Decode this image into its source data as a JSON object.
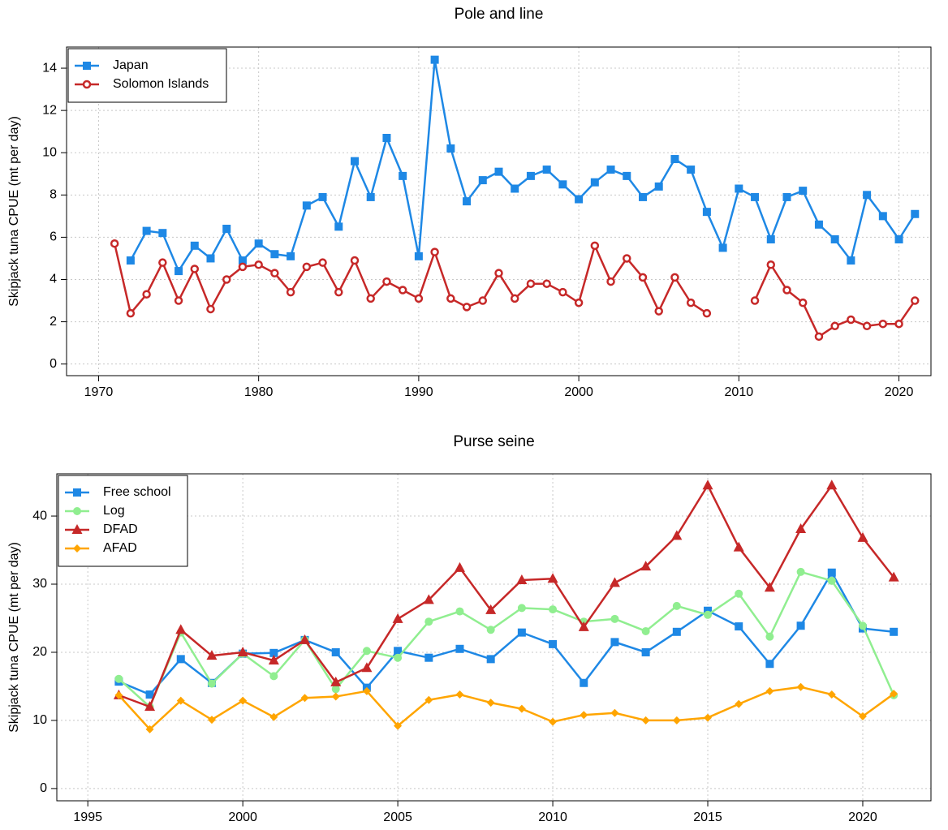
{
  "chart_data": [
    {
      "type": "line",
      "title": "Pole and line",
      "y_label": "Skipjack tuna CPUE (mt per day)",
      "xlim": [
        1968,
        2022
      ],
      "xticks": [
        1970,
        1980,
        1990,
        2000,
        2010,
        2020
      ],
      "ylim": [
        -0.55,
        15.0
      ],
      "yticks": [
        0,
        2,
        4,
        6,
        8,
        10,
        12,
        14
      ],
      "grid": true,
      "legend": "top-left",
      "series": [
        {
          "name": "Japan",
          "color": "#1E88E5",
          "marker": "square",
          "x": [
            1972,
            1973,
            1974,
            1975,
            1976,
            1977,
            1978,
            1979,
            1980,
            1981,
            1982,
            1983,
            1984,
            1985,
            1986,
            1987,
            1988,
            1989,
            1990,
            1991,
            1992,
            1993,
            1994,
            1995,
            1996,
            1997,
            1998,
            1999,
            2000,
            2001,
            2002,
            2003,
            2004,
            2005,
            2006,
            2007,
            2008,
            2009,
            2010,
            2011,
            2012,
            2013,
            2014,
            2015,
            2016,
            2017,
            2018,
            2019,
            2020,
            2021
          ],
          "values": [
            4.9,
            6.3,
            6.2,
            4.4,
            5.6,
            5.0,
            6.4,
            4.9,
            5.7,
            5.2,
            5.1,
            7.5,
            7.9,
            6.5,
            9.6,
            7.9,
            10.7,
            8.9,
            5.1,
            14.4,
            10.2,
            7.7,
            8.7,
            9.1,
            8.3,
            8.9,
            9.2,
            8.5,
            7.8,
            8.6,
            9.2,
            8.9,
            7.9,
            8.4,
            9.7,
            9.2,
            7.2,
            5.5,
            8.3,
            7.9,
            5.9,
            7.9,
            8.2,
            6.6,
            5.9,
            4.9,
            8.0,
            7.0,
            5.9,
            7.1
          ]
        },
        {
          "name": "Solomon Islands",
          "color": "#C62828",
          "marker": "open-circle",
          "x": [
            1971,
            1972,
            1973,
            1974,
            1975,
            1976,
            1977,
            1978,
            1979,
            1980,
            1981,
            1982,
            1983,
            1984,
            1985,
            1986,
            1987,
            1988,
            1989,
            1990,
            1991,
            1992,
            1993,
            1994,
            1995,
            1996,
            1997,
            1998,
            1999,
            2000,
            2001,
            2002,
            2003,
            2004,
            2005,
            2006,
            2007,
            2008,
            2009,
            2010,
            2011,
            2012,
            2013,
            2014,
            2015,
            2016,
            2017,
            2018,
            2019,
            2020,
            2021
          ],
          "values": [
            5.7,
            2.4,
            3.3,
            4.8,
            3.0,
            4.5,
            2.6,
            4.0,
            4.6,
            4.7,
            4.3,
            3.4,
            4.6,
            4.8,
            3.4,
            4.9,
            3.1,
            3.9,
            3.5,
            3.1,
            5.3,
            3.1,
            2.7,
            3.0,
            4.3,
            3.1,
            3.8,
            3.8,
            3.4,
            2.9,
            5.6,
            3.9,
            5.0,
            4.1,
            2.5,
            4.1,
            2.9,
            2.4,
            null,
            null,
            3.0,
            4.7,
            3.5,
            2.9,
            1.3,
            1.8,
            2.1,
            1.8,
            1.9,
            1.9,
            3.0
          ]
        }
      ]
    },
    {
      "type": "line",
      "title": "Purse seine",
      "y_label": "Skipjack tuna CPUE (mt per day)",
      "xlim": [
        1994,
        2022.2
      ],
      "xticks": [
        1995,
        2000,
        2005,
        2010,
        2015,
        2020
      ],
      "ylim": [
        -1.8,
        46.2
      ],
      "yticks": [
        0,
        10,
        20,
        30,
        40
      ],
      "grid": true,
      "legend": "top-left",
      "series": [
        {
          "name": "Free school",
          "color": "#1E88E5",
          "marker": "square",
          "x": [
            1996,
            1997,
            1998,
            1999,
            2000,
            2001,
            2002,
            2003,
            2004,
            2005,
            2006,
            2007,
            2008,
            2009,
            2010,
            2011,
            2012,
            2013,
            2014,
            2015,
            2016,
            2017,
            2018,
            2019,
            2020,
            2021
          ],
          "values": [
            15.7,
            13.8,
            19.0,
            15.5,
            19.8,
            19.9,
            21.8,
            20.0,
            14.8,
            20.2,
            19.2,
            20.5,
            19.0,
            22.9,
            21.2,
            15.5,
            21.5,
            20.0,
            23.0,
            26.1,
            23.8,
            18.3,
            23.9,
            31.7,
            23.5,
            23.0
          ]
        },
        {
          "name": "Log",
          "color": "#90EE90",
          "marker": "circle",
          "x": [
            1996,
            1997,
            1998,
            1999,
            2000,
            2001,
            2002,
            2003,
            2004,
            2005,
            2006,
            2007,
            2008,
            2009,
            2010,
            2011,
            2012,
            2013,
            2014,
            2015,
            2016,
            2017,
            2018,
            2019,
            2020,
            2021
          ],
          "values": [
            16.1,
            12.0,
            22.9,
            15.4,
            19.8,
            16.5,
            21.8,
            14.6,
            20.2,
            19.2,
            24.5,
            26.0,
            23.3,
            26.5,
            26.3,
            24.5,
            24.9,
            23.1,
            26.8,
            25.5,
            28.6,
            22.3,
            31.8,
            30.5,
            23.9,
            13.7
          ]
        },
        {
          "name": "DFAD",
          "color": "#C62828",
          "marker": "triangle",
          "x": [
            1996,
            1997,
            1998,
            1999,
            2000,
            2001,
            2002,
            2003,
            2004,
            2005,
            2006,
            2007,
            2008,
            2009,
            2010,
            2011,
            2012,
            2013,
            2014,
            2015,
            2016,
            2017,
            2018,
            2019,
            2020,
            2021
          ],
          "values": [
            13.7,
            12.0,
            23.3,
            19.5,
            20.0,
            18.8,
            21.8,
            15.6,
            17.7,
            24.9,
            27.7,
            32.4,
            26.2,
            30.6,
            30.8,
            23.7,
            30.2,
            32.6,
            37.1,
            44.5,
            35.4,
            29.5,
            38.1,
            44.5,
            36.8,
            31.0
          ]
        },
        {
          "name": "AFAD",
          "color": "#FFA500",
          "marker": "diamond",
          "x": [
            1996,
            1997,
            1998,
            1999,
            2000,
            2001,
            2002,
            2003,
            2004,
            2005,
            2006,
            2007,
            2008,
            2009,
            2010,
            2011,
            2012,
            2013,
            2014,
            2015,
            2016,
            2017,
            2018,
            2019,
            2020,
            2021
          ],
          "values": [
            13.7,
            8.7,
            12.9,
            10.1,
            12.9,
            10.5,
            13.3,
            13.5,
            14.3,
            9.2,
            13.0,
            13.8,
            12.6,
            11.7,
            9.8,
            10.8,
            11.1,
            10.0,
            10.0,
            10.4,
            12.4,
            14.3,
            14.9,
            13.8,
            10.6,
            13.9
          ]
        }
      ]
    }
  ]
}
